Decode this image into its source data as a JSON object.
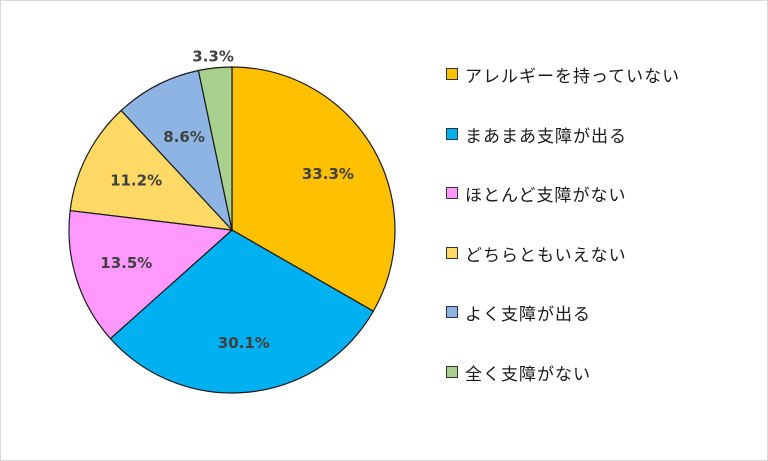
{
  "chart_data": {
    "type": "pie",
    "title": "",
    "start_angle_deg": 0,
    "direction": "clockwise",
    "legend_position": "right",
    "slices": [
      {
        "label": "アレルギーを持っていない",
        "value": 33.3,
        "value_label": "33.3%",
        "color": "#FFC000"
      },
      {
        "label": "まあまあ支障が出る",
        "value": 30.1,
        "value_label": "30.1%",
        "color": "#00B0F0"
      },
      {
        "label": "ほとんど支障がない",
        "value": 13.5,
        "value_label": "13.5%",
        "color": "#FF99FF"
      },
      {
        "label": "どちらともいえない",
        "value": 11.2,
        "value_label": "11.2%",
        "color": "#FFD966"
      },
      {
        "label": "よく支障が出る",
        "value": 8.6,
        "value_label": "8.6%",
        "color": "#8DB4E2"
      },
      {
        "label": "全く支障がない",
        "value": 3.3,
        "value_label": "3.3%",
        "color": "#A9D18E"
      }
    ]
  }
}
